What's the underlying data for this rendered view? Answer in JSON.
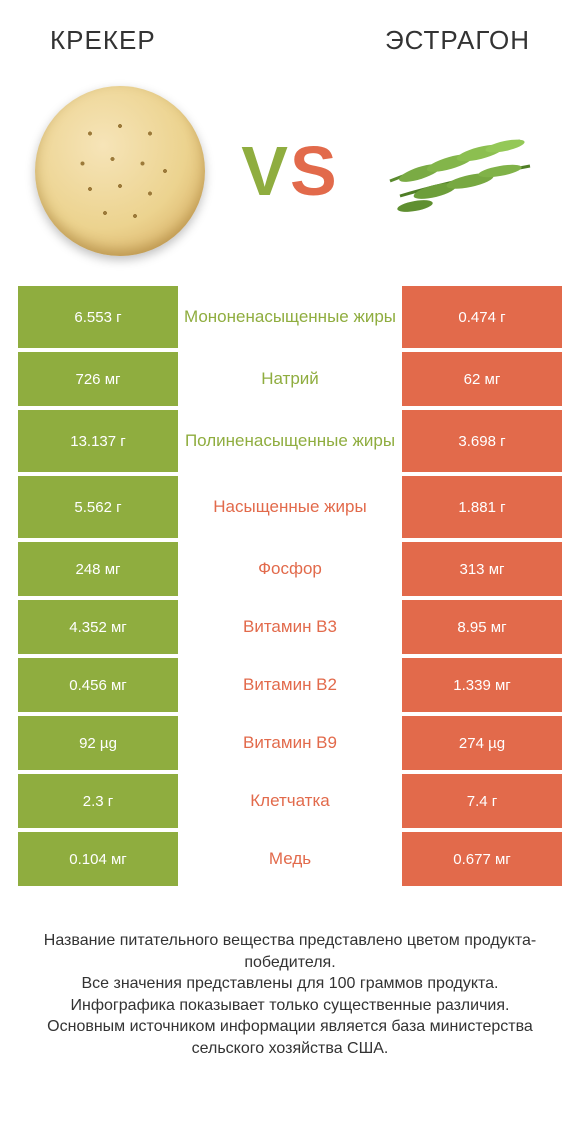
{
  "colors": {
    "left": "#8fad3f",
    "right": "#e26a4b",
    "bg": "#ffffff",
    "text": "#333333"
  },
  "header": {
    "left_title": "КРЕКЕР",
    "right_title": "ЭСТРАГОН",
    "vs_v": "V",
    "vs_s": "S"
  },
  "rows": [
    {
      "left": "6.553 г",
      "label": "Мононенасыщенные жиры",
      "right": "0.474 г",
      "winner": "left",
      "tall": true
    },
    {
      "left": "726 мг",
      "label": "Натрий",
      "right": "62 мг",
      "winner": "left",
      "tall": false
    },
    {
      "left": "13.137 г",
      "label": "Полиненасыщенные жиры",
      "right": "3.698 г",
      "winner": "left",
      "tall": true
    },
    {
      "left": "5.562 г",
      "label": "Насыщенные жиры",
      "right": "1.881 г",
      "winner": "right",
      "tall": true
    },
    {
      "left": "248 мг",
      "label": "Фосфор",
      "right": "313 мг",
      "winner": "right",
      "tall": false
    },
    {
      "left": "4.352 мг",
      "label": "Витамин B3",
      "right": "8.95 мг",
      "winner": "right",
      "tall": false
    },
    {
      "left": "0.456 мг",
      "label": "Витамин B2",
      "right": "1.339 мг",
      "winner": "right",
      "tall": false
    },
    {
      "left": "92 µg",
      "label": "Витамин B9",
      "right": "274 µg",
      "winner": "right",
      "tall": false
    },
    {
      "left": "2.3 г",
      "label": "Клетчатка",
      "right": "7.4 г",
      "winner": "right",
      "tall": false
    },
    {
      "left": "0.104 мг",
      "label": "Медь",
      "right": "0.677 мг",
      "winner": "right",
      "tall": false
    }
  ],
  "footer": {
    "line1": "Название питательного вещества представлено цветом продукта-победителя.",
    "line2": "Все значения представлены для 100 граммов продукта.",
    "line3": "Инфографика показывает только существенные различия.",
    "line4": "Основным источником информации является база министерства сельского хозяйства США."
  }
}
